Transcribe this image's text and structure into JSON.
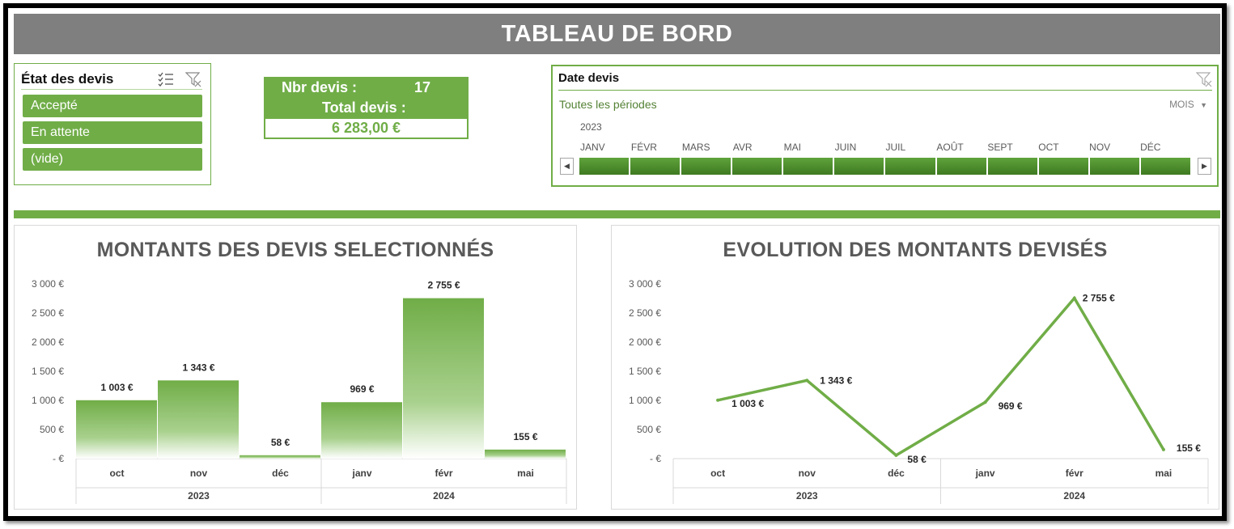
{
  "header": {
    "title": "TABLEAU DE BORD"
  },
  "slicer": {
    "title": "État des devis",
    "icons": [
      "multi-select-icon",
      "clear-filter-icon"
    ],
    "items": [
      {
        "label": "Accepté"
      },
      {
        "label": "En attente"
      },
      {
        "label": "(vide)"
      }
    ]
  },
  "kpi": {
    "count_label": "Nbr devis :",
    "count_value": "17",
    "total_label": "Total devis :",
    "total_value": "6 283,00 €"
  },
  "timeline": {
    "title": "Date devis",
    "all_periods": "Toutes les périodes",
    "unit": "MOIS",
    "year": "2023",
    "months": [
      "JANV",
      "FÉVR",
      "MARS",
      "AVR",
      "MAI",
      "JUIN",
      "JUIL",
      "AOÛT",
      "SEPT",
      "OCT",
      "NOV",
      "DÉC"
    ],
    "colors": {
      "accent": "#70ad47"
    }
  },
  "chart_data": [
    {
      "type": "bar",
      "title": "MONTANTS DES DEVIS SELECTIONNÉS",
      "categories": [
        "oct",
        "nov",
        "déc",
        "janv",
        "févr",
        "mai"
      ],
      "groups": [
        {
          "label": "2023",
          "count": 3
        },
        {
          "label": "2024",
          "count": 3
        }
      ],
      "values": [
        1003,
        1343,
        58,
        969,
        2755,
        155
      ],
      "data_labels": [
        "1 003 €",
        "1 343 €",
        "58 €",
        "969 €",
        "2 755 €",
        "155 €"
      ],
      "yticks": [
        0,
        500,
        1000,
        1500,
        2000,
        2500,
        3000
      ],
      "ytick_labels": [
        "- €",
        "500 €",
        "1 000 €",
        "1 500 €",
        "2 000 €",
        "2 500 €",
        "3 000 €"
      ],
      "ylim": [
        0,
        3000
      ],
      "grid": false,
      "color": "#70ad47"
    },
    {
      "type": "line",
      "title": "EVOLUTION DES MONTANTS DEVISÉS",
      "categories": [
        "oct",
        "nov",
        "déc",
        "janv",
        "févr",
        "mai"
      ],
      "groups": [
        {
          "label": "2023",
          "count": 3
        },
        {
          "label": "2024",
          "count": 3
        }
      ],
      "values": [
        1003,
        1343,
        58,
        969,
        2755,
        155
      ],
      "data_labels": [
        "1 003 €",
        "1 343 €",
        "58 €",
        "969 €",
        "2 755 €",
        "155 €"
      ],
      "yticks": [
        0,
        500,
        1000,
        1500,
        2000,
        2500,
        3000
      ],
      "ytick_labels": [
        "- €",
        "500 €",
        "1 000 €",
        "1 500 €",
        "2 000 €",
        "2 500 €",
        "3 000 €"
      ],
      "ylim": [
        0,
        3000
      ],
      "grid": false,
      "color": "#70ad47"
    }
  ]
}
